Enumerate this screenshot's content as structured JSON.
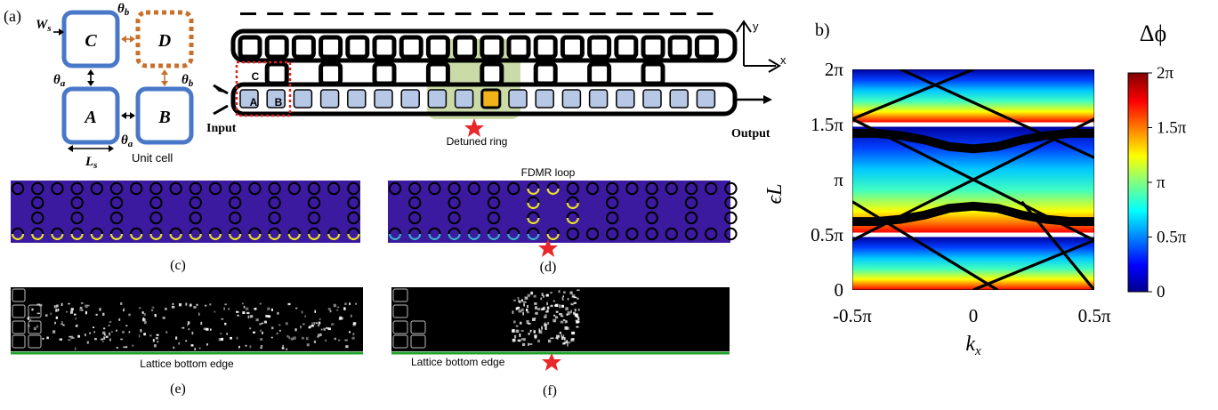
{
  "panel_a": {
    "label": "(a)",
    "cells": {
      "A": "A",
      "B": "B",
      "C": "C",
      "D": "D"
    },
    "symbols": {
      "ws": "W",
      "ws_sub": "s",
      "ls": "L",
      "ls_sub": "s",
      "theta_a1": "θ",
      "theta_a2": "θ",
      "theta_b1": "θ",
      "theta_b2": "θ",
      "sub_a": "a",
      "sub_b": "b"
    },
    "unit_cell_label": "Unit cell",
    "lattice_labels": {
      "c": "C",
      "a": "A",
      "b": "B"
    },
    "input_label": "Input",
    "output_label": "Output",
    "detuned_label": "Detuned ring",
    "axis_y": "y",
    "axis_x": "x"
  },
  "panel_c": {
    "label": "(c)"
  },
  "panel_d": {
    "label": "(d)",
    "title": "FDMR loop"
  },
  "panel_e": {
    "label": "(e)",
    "caption": "Lattice bottom edge"
  },
  "panel_f": {
    "label": "(f)",
    "caption": "Lattice bottom edge"
  },
  "panel_b": {
    "label": "b)"
  },
  "colors": {
    "ring_blue": "#4a78c8",
    "ring_orange": "#c8702a",
    "cell_fill": "#b7c7e6",
    "detuned": "#f2b21a",
    "loop_green": "#7a9a3a",
    "field_bg": "#3b1aa0",
    "star": "#e8282b",
    "edge_green": "#1fa12a",
    "dashed_red": "#e02020"
  },
  "chart_data": {
    "type": "line",
    "xlabel": "k",
    "xlabel_sub": "x",
    "ylabel": "ϵL",
    "xlim": [
      -0.5,
      0.5
    ],
    "ylim": [
      0,
      2
    ],
    "x_ticks": [
      -0.5,
      0,
      0.5
    ],
    "x_tick_labels": [
      "-0.5π",
      "0",
      "0.5π"
    ],
    "y_ticks": [
      0,
      0.5,
      1,
      1.5,
      2
    ],
    "y_tick_labels": [
      "0",
      "0.5π",
      "π",
      "1.5π",
      "2π"
    ],
    "colorbar": {
      "title": "Δϕ",
      "range": [
        0,
        2
      ],
      "ticks": [
        0,
        0.5,
        1,
        1.5,
        2
      ],
      "tick_labels": [
        "0",
        "0.5π",
        "π",
        "1.5π",
        "2π"
      ]
    },
    "background_stripes": [
      {
        "y0": 0.0,
        "y1": 0.48
      },
      {
        "y0": 0.52,
        "y1": 1.48
      },
      {
        "y0": 1.52,
        "y1": 2.0
      }
    ],
    "series": [
      {
        "x": [
          -0.5,
          0.5
        ],
        "y": [
          0.45,
          1.55
        ]
      },
      {
        "x": [
          -0.5,
          0.5
        ],
        "y": [
          1.55,
          0.45
        ]
      },
      {
        "x": [
          -0.5,
          0.0
        ],
        "y": [
          1.55,
          2.0
        ]
      },
      {
        "x": [
          -0.3,
          0.5
        ],
        "y": [
          2.0,
          1.2
        ]
      },
      {
        "x": [
          0.0,
          0.5
        ],
        "y": [
          0.0,
          0.45
        ]
      },
      {
        "x": [
          -0.5,
          0.1
        ],
        "y": [
          0.8,
          0.0
        ]
      },
      {
        "x": [
          0.2,
          0.5
        ],
        "y": [
          0.8,
          0.0
        ]
      }
    ],
    "bands": [
      {
        "x": [
          -0.5,
          -0.4,
          -0.3,
          -0.2,
          -0.1,
          0,
          0.1,
          0.2,
          0.3,
          0.4,
          0.5
        ],
        "y": [
          1.42,
          1.42,
          1.4,
          1.36,
          1.3,
          1.28,
          1.3,
          1.36,
          1.4,
          1.42,
          1.42
        ],
        "thickness": 0.08
      },
      {
        "x": [
          -0.5,
          -0.4,
          -0.3,
          -0.2,
          -0.1,
          0,
          0.1,
          0.2,
          0.3,
          0.4,
          0.5
        ],
        "y": [
          0.62,
          0.62,
          0.64,
          0.68,
          0.74,
          0.76,
          0.74,
          0.68,
          0.64,
          0.62,
          0.62
        ],
        "thickness": 0.08
      }
    ]
  }
}
